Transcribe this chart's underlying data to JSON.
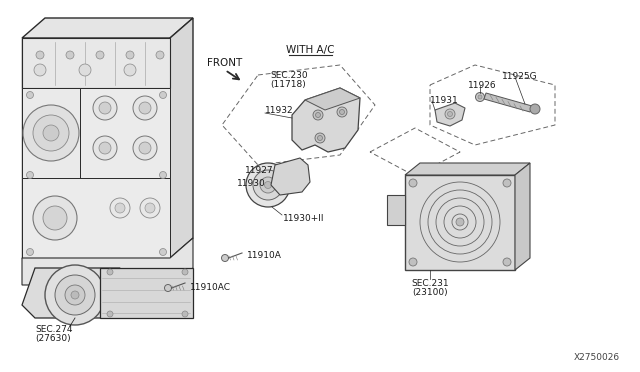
{
  "bg_color": "#ffffff",
  "line_color": "#2a2a2a",
  "labels": {
    "front": "FRONT",
    "with_ac": "WITH A/C",
    "sec_230": "SEC.230",
    "sec_230_sub": "(11718)",
    "sec_274": "SEC.274",
    "sec_274_sub": "(27630)",
    "sec_231": "SEC.231",
    "sec_231_sub": "(23100)",
    "p11926": "11926",
    "p11925G": "11925G",
    "p11931": "11931",
    "p11932": "11932",
    "p11927": "11927",
    "p11930": "11930",
    "p11930_1": "11930+II",
    "p11910A": "11910A",
    "p11910AC": "11910AC",
    "diagram_ref": "X2750026"
  },
  "engine_color": "#e8e8e8",
  "part_color": "#d8d8d8",
  "compressor_color": "#d5d5d5"
}
